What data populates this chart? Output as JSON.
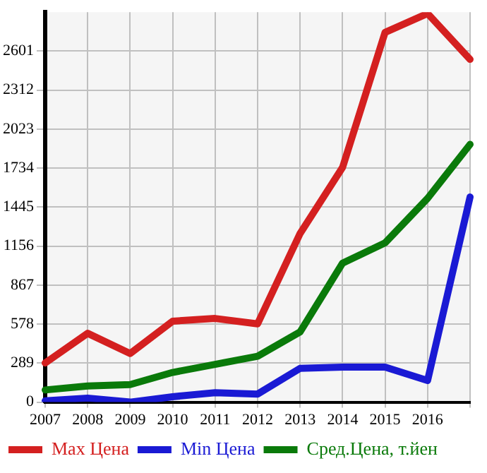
{
  "chart_data": {
    "type": "line",
    "categories": [
      "2007",
      "2008",
      "2009",
      "2010",
      "2011",
      "2012",
      "2013",
      "2014",
      "2015",
      "2016",
      null
    ],
    "series": [
      {
        "name": "Max Цена",
        "color": "#d42020",
        "values": [
          290,
          510,
          360,
          600,
          620,
          580,
          1250,
          1740,
          2740,
          2880,
          2540
        ]
      },
      {
        "name": "Min Цена",
        "color": "#1a1ad4",
        "values": [
          10,
          30,
          0,
          40,
          70,
          60,
          250,
          260,
          260,
          160,
          1520
        ]
      },
      {
        "name": "Сред.Цена, т.йен",
        "color": "#0a7a0a",
        "values": [
          90,
          120,
          130,
          220,
          280,
          340,
          520,
          1030,
          1180,
          1510,
          1910
        ]
      }
    ],
    "ylim": [
      0,
      2890
    ],
    "yticks": [
      0,
      289,
      578,
      867,
      1156,
      1445,
      1734,
      2023,
      2312,
      2601
    ],
    "grid": true,
    "legend": "bottom",
    "marker": "none",
    "line_style": "solid"
  }
}
